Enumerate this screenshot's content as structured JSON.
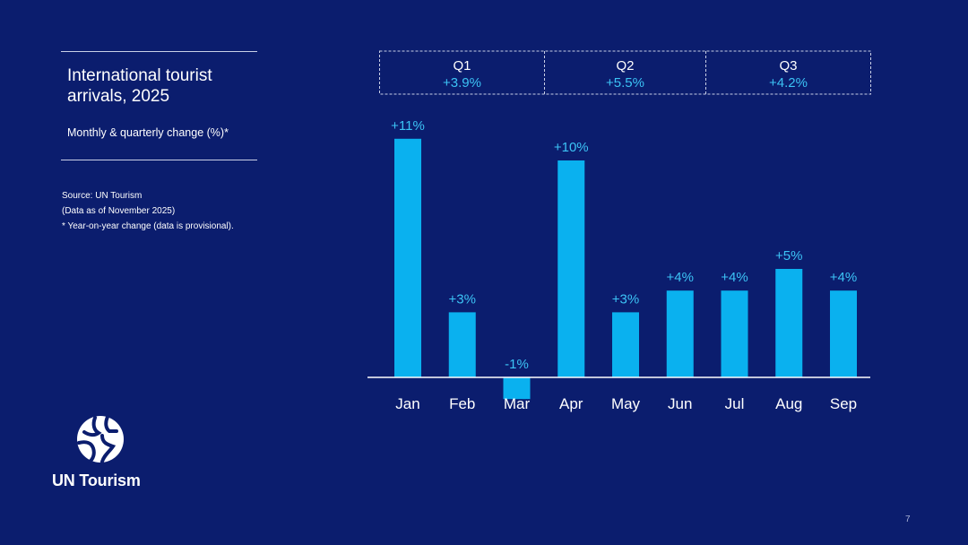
{
  "slide": {
    "title": "International tourist arrivals, 2025",
    "subtitle": "Monthly & quarterly change (%)*",
    "notes": [
      "Source: UN Tourism",
      "(Data as of November 2025)",
      "* Year-on-year change (data is provisional)."
    ],
    "logo_text": "UN Tourism",
    "page_number": "7"
  },
  "colors": {
    "background": "#0b1d6e",
    "bar": "#0ab1ef",
    "bar_label": "#3cc3f5",
    "text": "#ffffff"
  },
  "chart_data": {
    "type": "bar",
    "categories": [
      "Jan",
      "Feb",
      "Mar",
      "Apr",
      "May",
      "Jun",
      "Jul",
      "Aug",
      "Sep"
    ],
    "values": [
      11,
      3,
      -1,
      10,
      3,
      4,
      4,
      5,
      4
    ],
    "data_labels": [
      "+11%",
      "+3%",
      "-1%",
      "+10%",
      "+3%",
      "+4%",
      "+4%",
      "+5%",
      "+4%"
    ],
    "quarters": [
      {
        "label": "Q1",
        "value_label": "+3.9%",
        "months": 3
      },
      {
        "label": "Q2",
        "value_label": "+5.5%",
        "months": 3
      },
      {
        "label": "Q3",
        "value_label": "+4.2%",
        "months": 3
      }
    ],
    "title": "International tourist arrivals, 2025",
    "xlabel": "",
    "ylabel": "",
    "ylim": [
      -1,
      11
    ],
    "grid": false,
    "legend": "none"
  }
}
